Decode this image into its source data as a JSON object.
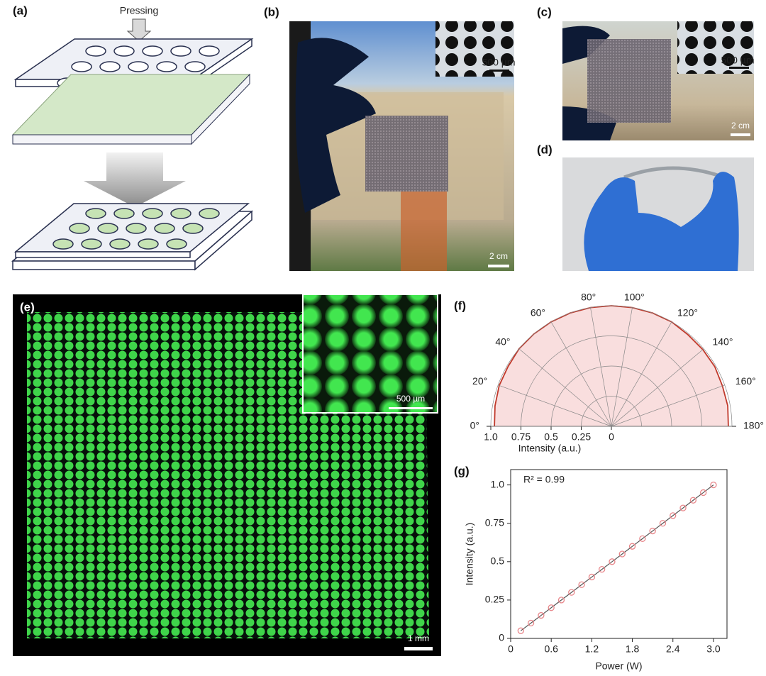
{
  "panels": {
    "a": {
      "label": "(a)",
      "annotation": "Pressing"
    },
    "b": {
      "label": "(b)",
      "inset_scale_bar": "500 µm",
      "scale_bar": "2 cm"
    },
    "c": {
      "label": "(c)",
      "inset_scale_bar": "500 µm",
      "scale_bar": "2 cm"
    },
    "d": {
      "label": "(d)"
    },
    "e": {
      "label": "(e)",
      "inset_scale_bar": "500 µm",
      "scale_bar": "1 mm"
    }
  },
  "chart_data": [
    {
      "type": "polar",
      "panel_label": "(f)",
      "xlabel": "Intensity (a.u.)",
      "theta": [
        0,
        10,
        20,
        30,
        40,
        50,
        60,
        70,
        80,
        90,
        100,
        110,
        120,
        130,
        140,
        150,
        160,
        170,
        180
      ],
      "values": [
        0.97,
        0.98,
        0.99,
        0.99,
        1.0,
        1.0,
        1.0,
        1.0,
        1.0,
        1.0,
        1.0,
        1.0,
        1.0,
        0.99,
        0.99,
        0.99,
        0.98,
        0.98,
        0.97
      ],
      "color": "#c0392b",
      "fill_color": "#f9dede",
      "rlim": [
        0,
        1.0
      ],
      "rticks": [
        {
          "value": 1,
          "label": "1.0"
        },
        0.75,
        0.5,
        0.25,
        0
      ],
      "thetaticks": [
        {
          "value": 0,
          "label": "0°"
        },
        {
          "value": 20,
          "label": "20°"
        },
        {
          "value": 40,
          "label": "40°"
        },
        {
          "value": 60,
          "label": "60°"
        },
        {
          "value": 80,
          "label": "80°"
        },
        {
          "value": 100,
          "label": "100°"
        },
        {
          "value": 120,
          "label": "120°"
        },
        {
          "value": 140,
          "label": "140°"
        },
        {
          "value": 160,
          "label": "160°"
        },
        {
          "value": 180,
          "label": "180°"
        }
      ],
      "grid": true
    },
    {
      "type": "scatter",
      "panel_label": "(g)",
      "xlabel": "Power (W)",
      "ylabel": "Intensity (a.u.)",
      "annotation": "R² = 0.99",
      "x": [
        0.15,
        0.3,
        0.45,
        0.6,
        0.75,
        0.9,
        1.05,
        1.2,
        1.35,
        1.5,
        1.65,
        1.8,
        1.95,
        2.1,
        2.25,
        2.4,
        2.55,
        2.7,
        2.85,
        3.0
      ],
      "values": [
        0.05,
        0.1,
        0.15,
        0.2,
        0.25,
        0.3,
        0.35,
        0.4,
        0.45,
        0.5,
        0.55,
        0.6,
        0.65,
        0.7,
        0.75,
        0.8,
        0.85,
        0.9,
        0.95,
        1.0
      ],
      "color": "#e8868a",
      "line_color": "#555555",
      "xlim": [
        0,
        3.2
      ],
      "ylim": [
        0,
        1.1
      ],
      "xticks": [
        0,
        0.6,
        1.2,
        1.8,
        2.4,
        {
          "value": 3,
          "label": "3.0"
        }
      ],
      "yticks": [
        0,
        0.25,
        0.5,
        0.75,
        {
          "value": 1,
          "label": "1.0"
        }
      ]
    }
  ]
}
